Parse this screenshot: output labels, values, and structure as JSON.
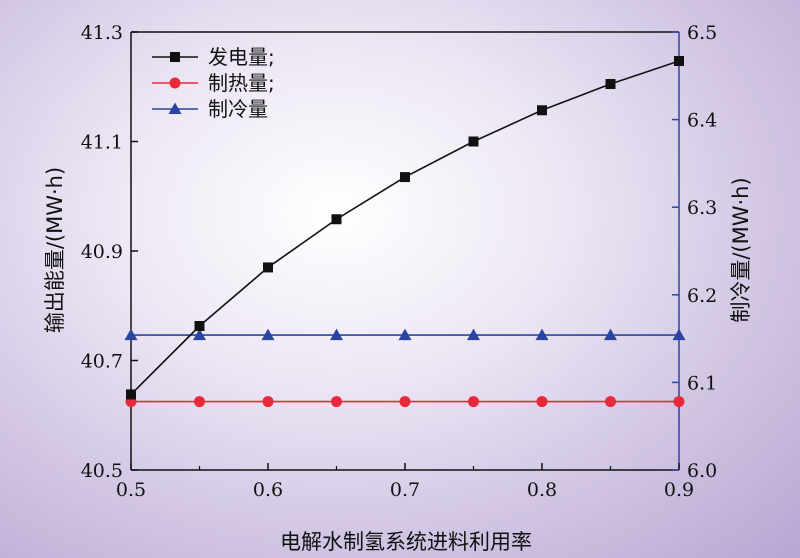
{
  "chart_data": {
    "type": "line",
    "title": "",
    "xlabel": "电解水制氢系统进料利用率",
    "ylabel_left": "输出能量/(MW·h)",
    "ylabel_right": "制冷量/(MW·h)",
    "x": [
      0.5,
      0.55,
      0.6,
      0.65,
      0.7,
      0.75,
      0.8,
      0.85,
      0.9
    ],
    "xlim": [
      0.5,
      0.9
    ],
    "xticks": [
      "0.5",
      "0.6",
      "0.7",
      "0.8",
      "0.9"
    ],
    "xtick_values": [
      0.5,
      0.6,
      0.7,
      0.8,
      0.9
    ],
    "ylim_left": [
      40.5,
      41.3
    ],
    "yticks_left": [
      "40.5",
      "40.7",
      "40.9",
      "41.1",
      "41.3"
    ],
    "ytick_values_left": [
      40.5,
      40.7,
      40.9,
      41.1,
      41.3
    ],
    "ylim_right": [
      6.0,
      6.5
    ],
    "yticks_right": [
      "6.0",
      "6.1",
      "6.2",
      "6.3",
      "6.4",
      "6.5"
    ],
    "ytick_values_right": [
      6.0,
      6.1,
      6.2,
      6.3,
      6.4,
      6.5
    ],
    "legend_position": "top-left",
    "grid": false,
    "series": [
      {
        "name": "发电量;",
        "axis": "left",
        "color": "#111111",
        "marker": "square",
        "values": [
          40.638,
          40.763,
          40.87,
          40.958,
          41.035,
          41.1,
          41.157,
          41.205,
          41.247
        ]
      },
      {
        "name": "制热量;",
        "axis": "left",
        "color": "#e8293a",
        "marker": "circle",
        "values": [
          40.625,
          40.625,
          40.625,
          40.625,
          40.625,
          40.625,
          40.625,
          40.625,
          40.625
        ]
      },
      {
        "name": "制冷量",
        "axis": "right",
        "color": "#2b44a3",
        "marker": "triangle",
        "values": [
          6.154,
          6.154,
          6.154,
          6.154,
          6.154,
          6.154,
          6.154,
          6.154,
          6.154
        ]
      }
    ]
  }
}
